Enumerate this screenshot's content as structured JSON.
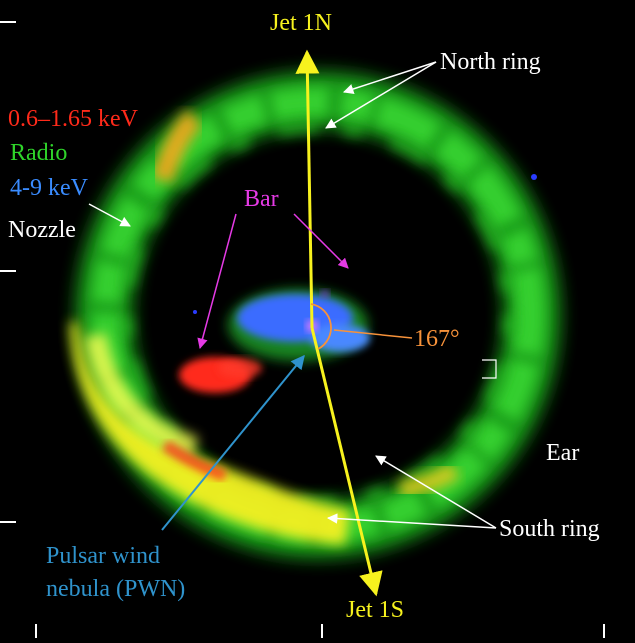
{
  "labels": {
    "jet_north": "Jet 1N",
    "jet_south": "Jet 1S",
    "north_ring": "North ring",
    "south_ring": "South ring",
    "band_soft": "0.6–1.65 keV",
    "band_radio": "Radio",
    "band_hard": "4-9 keV",
    "nozzle": "Nozzle",
    "bar": "Bar",
    "angle": "167°",
    "ear": "Ear",
    "pwn_line1": "Pulsar wind",
    "pwn_line2": "nebula (PWN)"
  },
  "colors": {
    "background": "#000000",
    "soft_xray": "#ff2a1a",
    "radio": "#2fd42a",
    "hard_xray": "#3a6cff",
    "overlap": "#f4f020",
    "jet": "#f7f21e",
    "bar_label": "#e53ae5",
    "angle": "#f7923a",
    "pwn_label": "#2f93cc",
    "annotation": "#ffffff"
  }
}
